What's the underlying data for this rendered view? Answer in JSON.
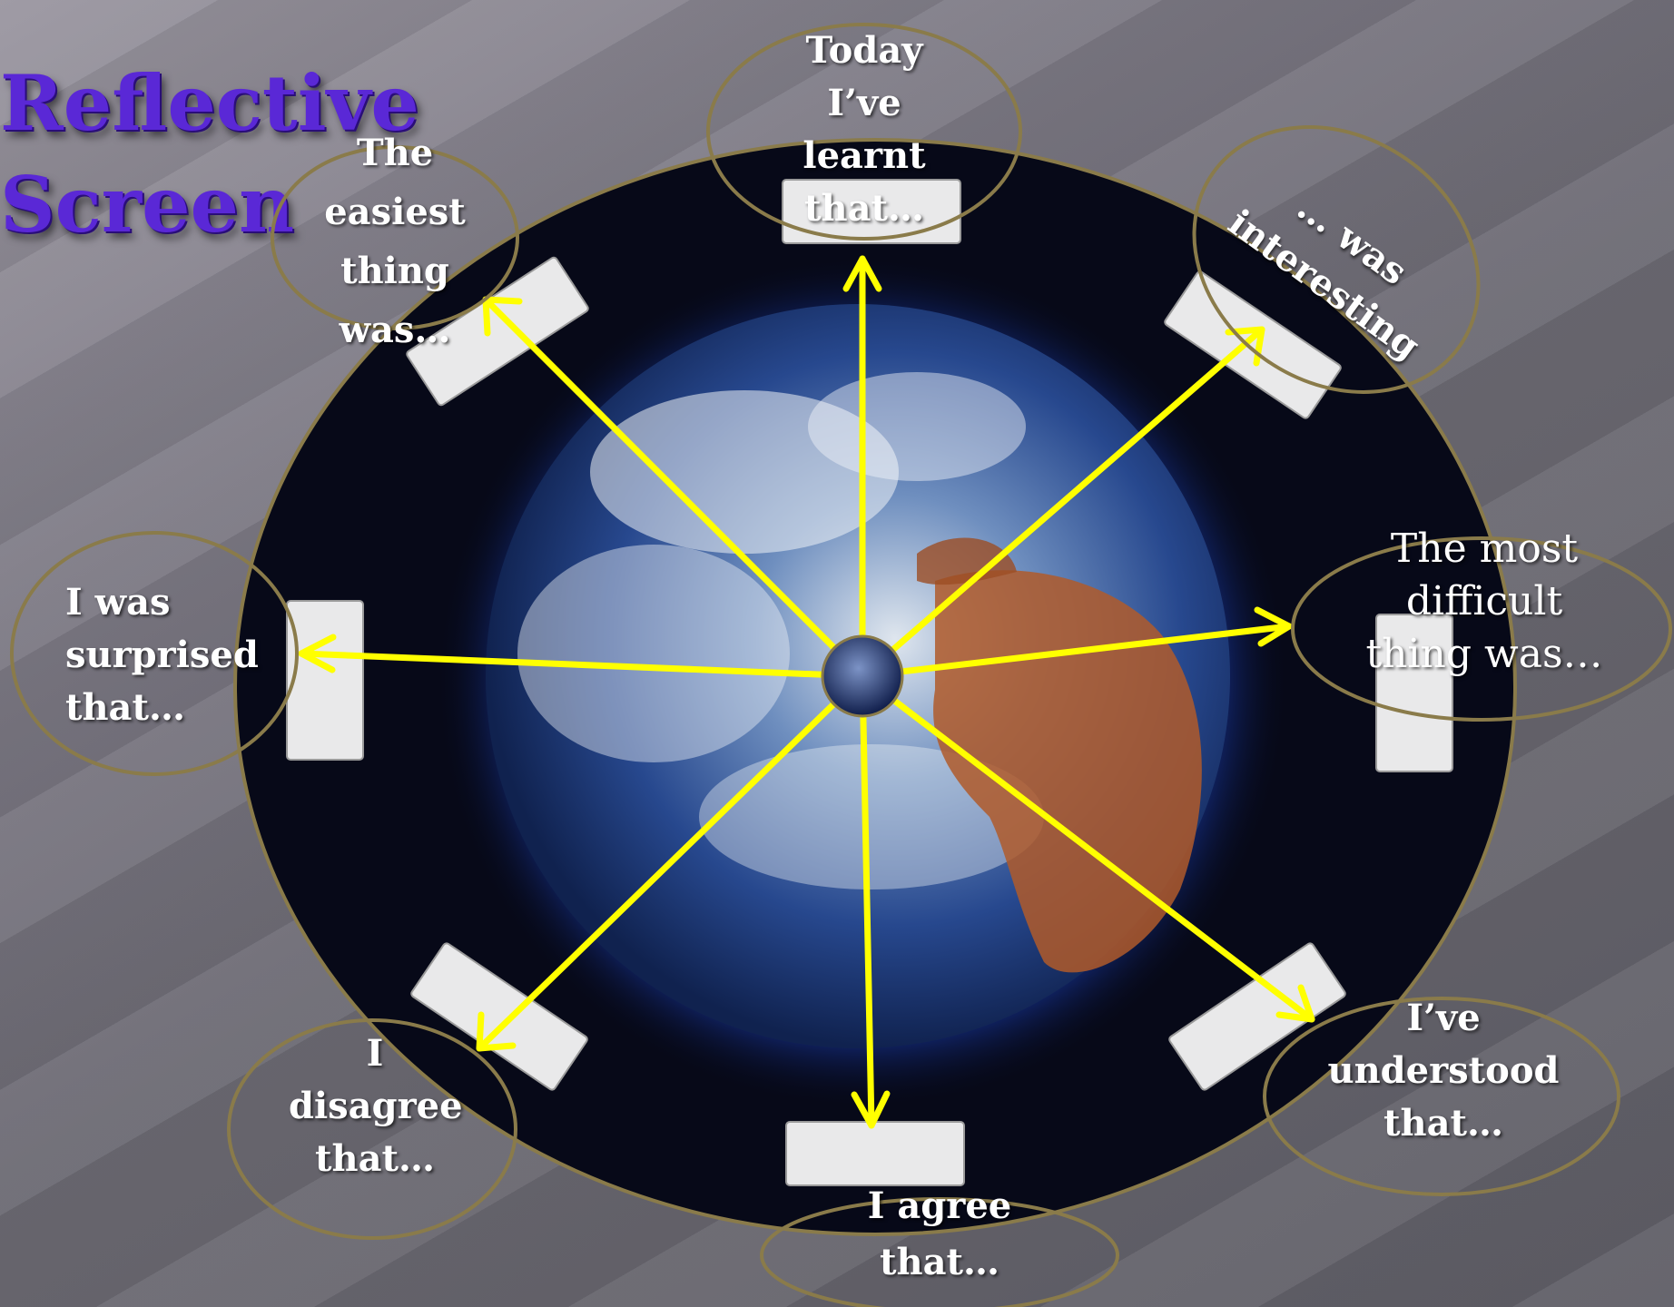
{
  "title": {
    "line1": "Reflective",
    "line2": "Screen"
  },
  "colors": {
    "accent_title": "#5a28d6",
    "arrows": "#ffff00",
    "bubble_outline": "#8a7b4a",
    "label_text": "#ffffff"
  },
  "prompts": {
    "today_learnt": "Today I’ve learnt that…",
    "easiest": "The easiest thing was…",
    "interesting": "… was interesting",
    "surprised": "I was surprised that…",
    "most_difficult": "The most difficult thing was…",
    "disagree": "I disagree that…",
    "understood": "I’ve understood that…",
    "agree": "I agree that…"
  }
}
